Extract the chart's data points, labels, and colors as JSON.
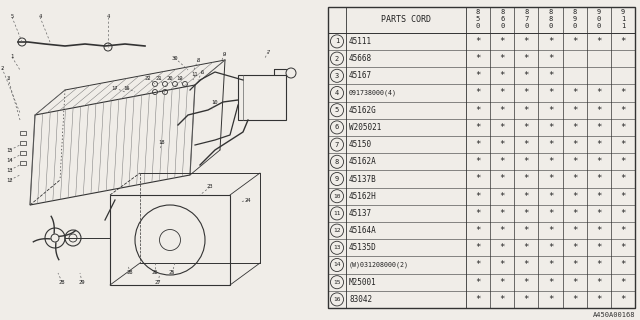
{
  "bg_color": "#f0ede8",
  "rows": [
    [
      "1",
      "45111",
      true,
      true,
      true,
      true,
      true,
      true,
      true
    ],
    [
      "2",
      "45668",
      true,
      true,
      true,
      true,
      false,
      false,
      false
    ],
    [
      "3",
      "45167",
      true,
      true,
      true,
      true,
      false,
      false,
      false
    ],
    [
      "4",
      "091738000(4)",
      true,
      true,
      true,
      true,
      true,
      true,
      true
    ],
    [
      "5",
      "45162G",
      true,
      true,
      true,
      true,
      true,
      true,
      true
    ],
    [
      "6",
      "W205021",
      true,
      true,
      true,
      true,
      true,
      true,
      true
    ],
    [
      "7",
      "45150",
      true,
      true,
      true,
      true,
      true,
      true,
      true
    ],
    [
      "8",
      "45162A",
      true,
      true,
      true,
      true,
      true,
      true,
      true
    ],
    [
      "9",
      "45137B",
      true,
      true,
      true,
      true,
      true,
      true,
      true
    ],
    [
      "10",
      "45162H",
      true,
      true,
      true,
      true,
      true,
      true,
      true
    ],
    [
      "11",
      "45137",
      true,
      true,
      true,
      true,
      true,
      true,
      true
    ],
    [
      "12",
      "45164A",
      true,
      true,
      true,
      true,
      true,
      true,
      true
    ],
    [
      "13",
      "45135D",
      true,
      true,
      true,
      true,
      true,
      true,
      true
    ],
    [
      "14",
      "(W)031208000(2)",
      true,
      true,
      true,
      true,
      true,
      true,
      true
    ],
    [
      "15",
      "M25001",
      true,
      true,
      true,
      true,
      true,
      true,
      true
    ],
    [
      "16",
      "83042",
      true,
      true,
      true,
      true,
      true,
      true,
      true
    ]
  ],
  "year_cols": [
    "8\n5\n0",
    "8\n6\n0",
    "8\n7\n0",
    "8\n8\n0",
    "8\n9\n0",
    "9\n0\n0",
    "9\n1\n1"
  ],
  "footer": "A450A00168",
  "edge_color": "#333333",
  "text_color": "#222222",
  "star_color": "#333333",
  "table_bg": "#f0ede8",
  "header_bg": "#f0ede8"
}
